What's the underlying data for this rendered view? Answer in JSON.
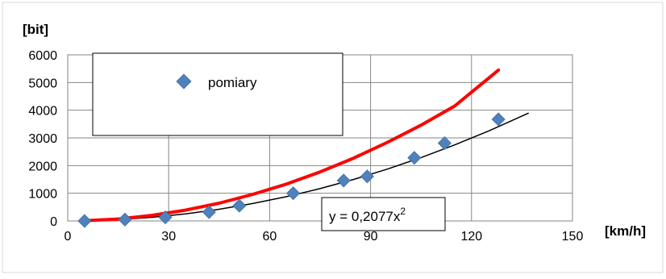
{
  "chart_data": {
    "type": "scatter",
    "title": "",
    "xlabel": "[km/h]",
    "ylabel": "[bit]",
    "xlim": [
      0,
      150
    ],
    "ylim": [
      0,
      6000
    ],
    "x_ticks": [
      0,
      30,
      60,
      90,
      120,
      150
    ],
    "y_ticks": [
      0,
      1000,
      2000,
      3000,
      4000,
      5000,
      6000
    ],
    "grid": true,
    "legend_position": "top-left",
    "series": [
      {
        "name": "pomiary",
        "kind": "markers",
        "marker": "diamond",
        "color": "#4f81bd",
        "x": [
          5,
          17,
          29,
          42,
          51,
          67,
          82,
          89,
          103,
          112,
          128
        ],
        "y": [
          0,
          50,
          130,
          320,
          550,
          1000,
          1460,
          1610,
          2280,
          2810,
          3670
        ]
      },
      {
        "kind": "line",
        "color": "#000000",
        "fit": "power",
        "coefficient": 0.2077,
        "exponent": 2,
        "x": [
          5,
          15,
          25,
          35,
          45,
          55,
          65,
          75,
          85,
          95,
          105,
          115,
          125,
          137
        ],
        "y": [
          5,
          47,
          130,
          254,
          421,
          628,
          878,
          1168,
          1501,
          1874,
          2290,
          2747,
          3245,
          3898
        ]
      },
      {
        "kind": "line",
        "color": "#ff0000",
        "x": [
          5,
          15,
          25,
          35,
          45,
          55,
          65,
          75,
          85,
          95,
          105,
          115,
          128
        ],
        "y": [
          8,
          70,
          200,
          390,
          640,
          960,
          1330,
          1770,
          2270,
          2840,
          3460,
          4150,
          5450
        ]
      }
    ],
    "trendline_label": {
      "prefix": "y = 0,2077x",
      "superscript": "2"
    }
  }
}
